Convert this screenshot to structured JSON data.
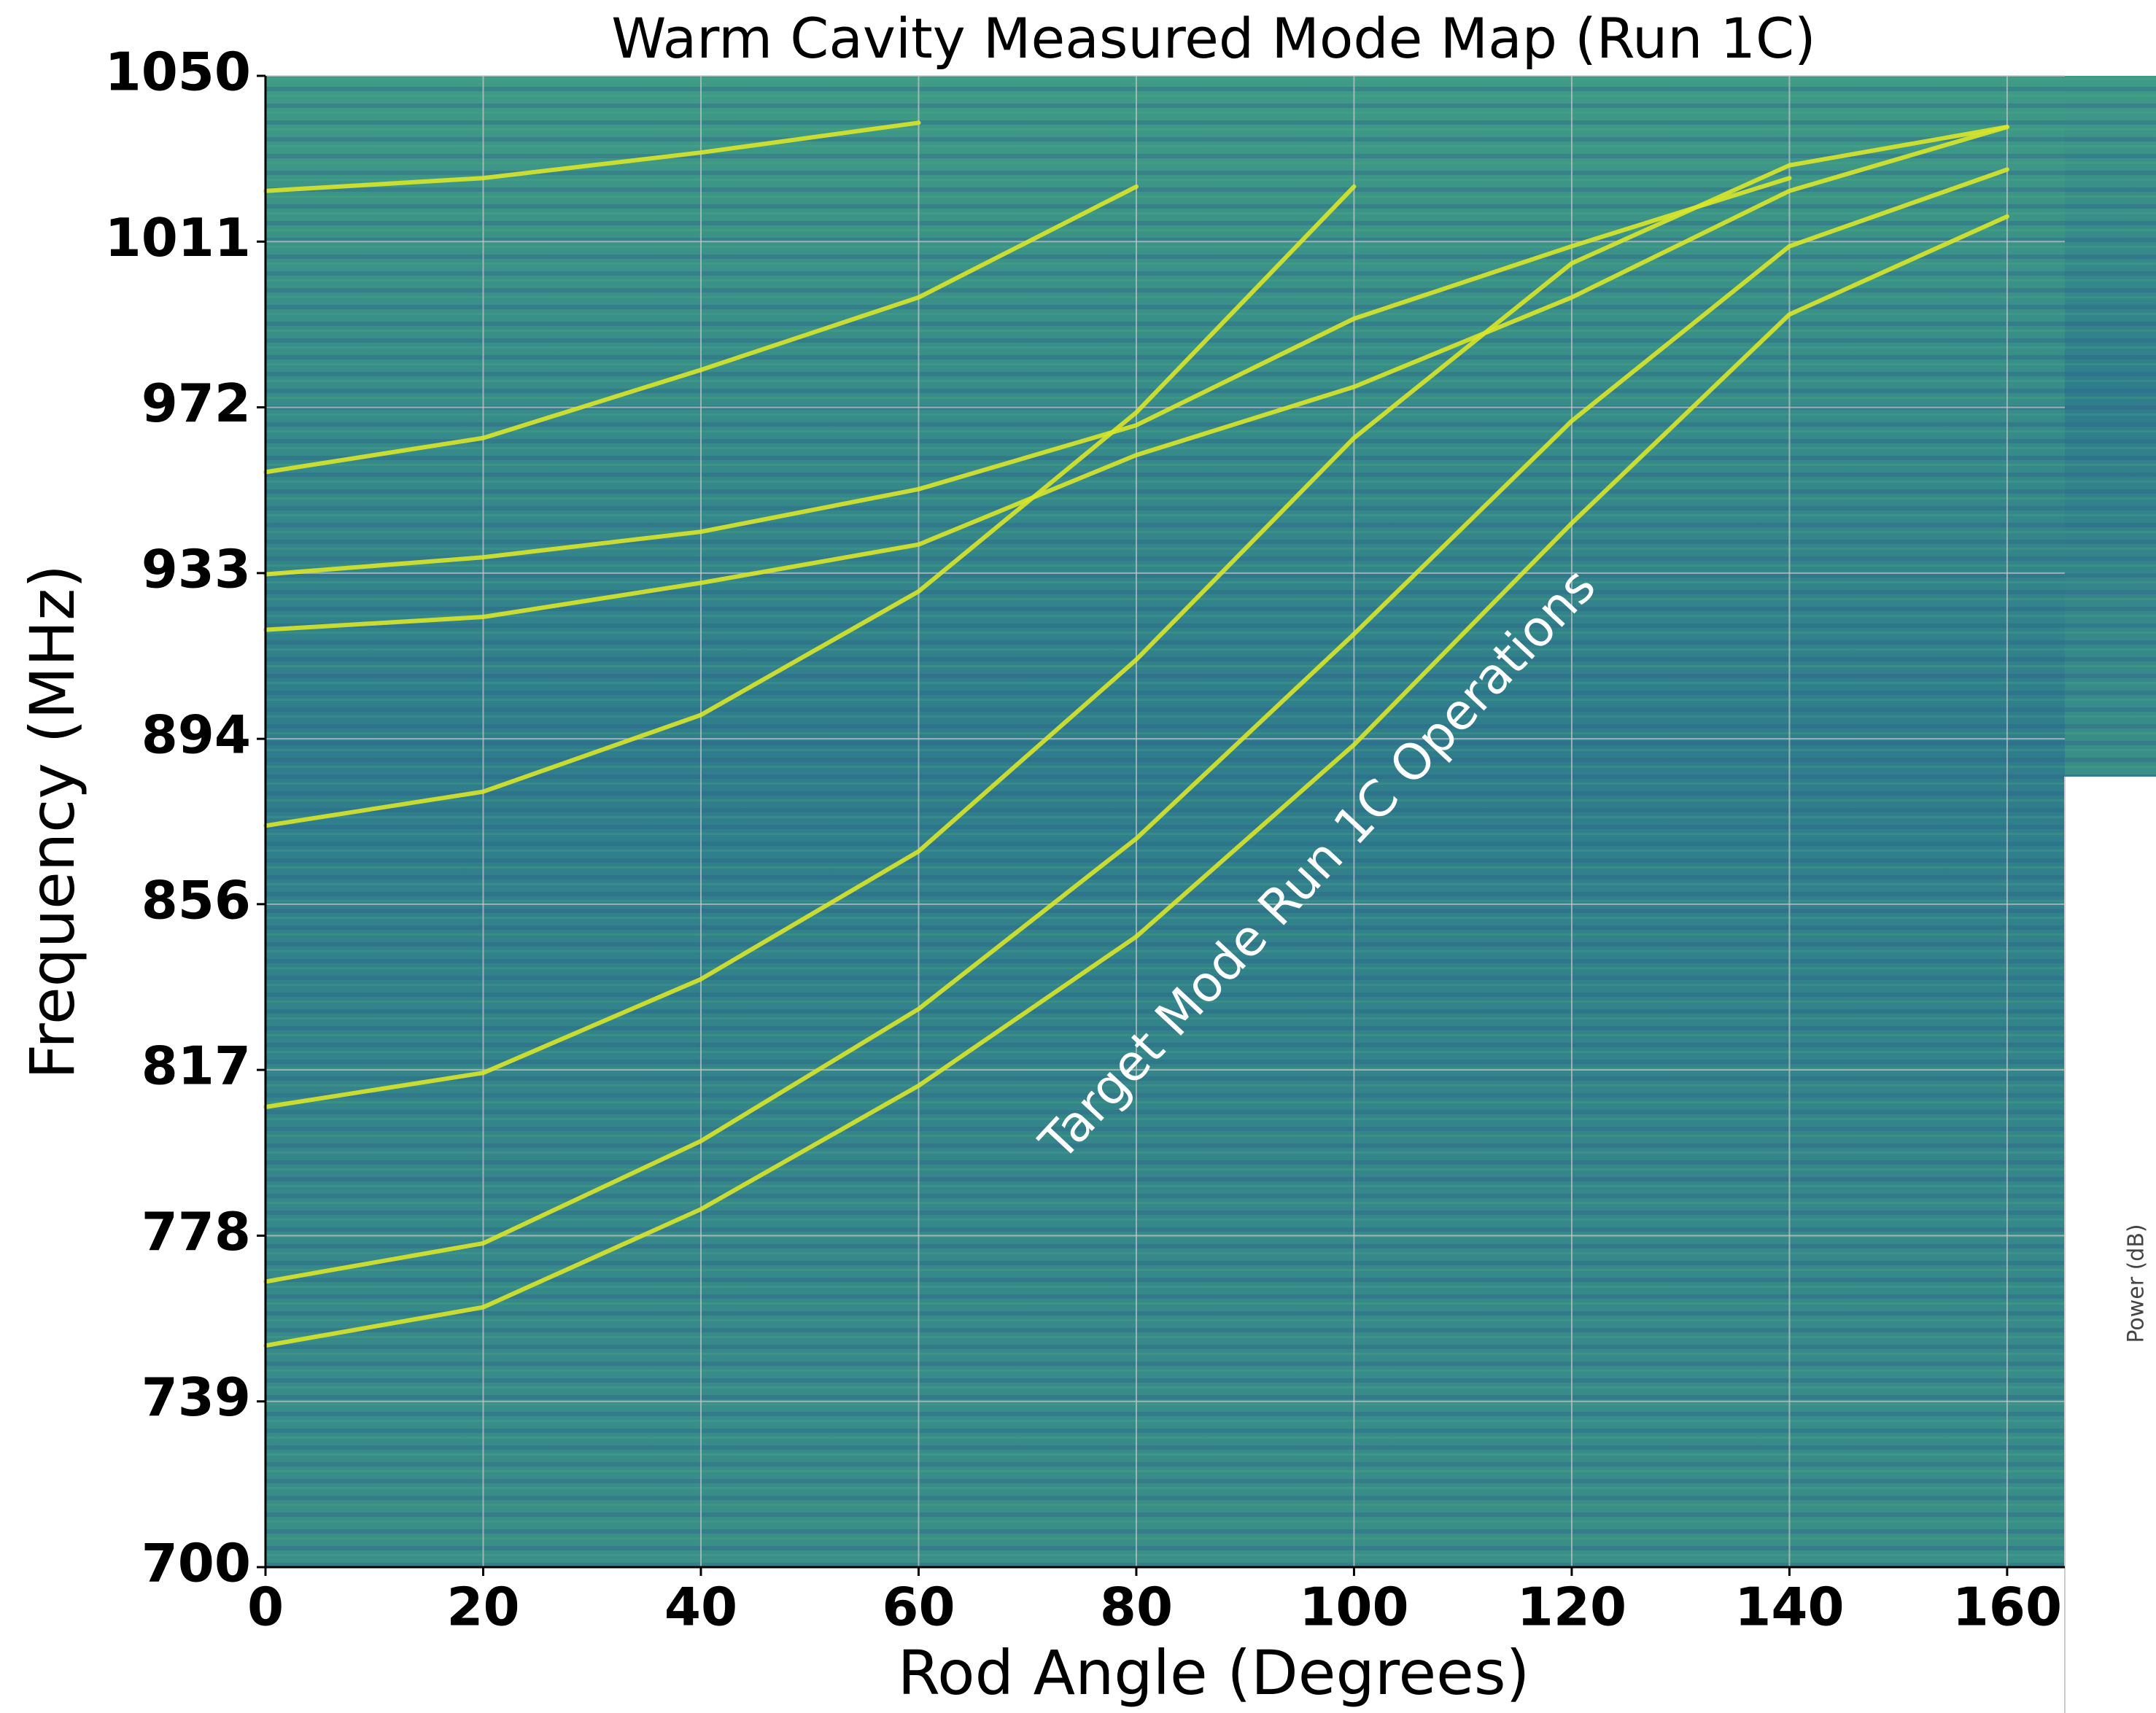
{
  "chart_data": {
    "type": "heatmap",
    "title": "Warm Cavity Measured Mode Map (Run 1C)",
    "x_label": "Rod Angle (Degrees)",
    "y_label": "Frequency (MHz)",
    "annotation": "Target Mode Run 1C Operations",
    "colorbar_label": "Power (dB)",
    "xlim": [
      0,
      165.3
    ],
    "ylim": [
      700,
      1050
    ],
    "xticks": [
      0,
      20,
      40,
      60,
      80,
      100,
      120,
      140,
      160
    ],
    "yticks": [
      700,
      {
        "value": 738.9,
        "label": "739"
      },
      {
        "value": 777.8,
        "label": "778"
      },
      {
        "value": 816.7,
        "label": "817"
      },
      {
        "value": 855.6,
        "label": "856"
      },
      {
        "value": 894.4,
        "label": "894"
      },
      {
        "value": 933.3,
        "label": "933"
      },
      {
        "value": 972.2,
        "label": "972"
      },
      {
        "value": 1011.1,
        "label": "1011"
      },
      1050
    ],
    "grid": true,
    "x": [
      0,
      20,
      40,
      60,
      80,
      100,
      120,
      140,
      160
    ],
    "series": [
      {
        "color": "#d9e52a",
        "values": [
          752,
          761,
          784,
          813,
          848,
          893,
          945,
          994,
          1017
        ]
      },
      {
        "color": "#d9e52a",
        "values": [
          767,
          776,
          800,
          831,
          871,
          919,
          969,
          1010,
          1028
        ]
      },
      {
        "color": "#d9e52a",
        "values": [
          808,
          816,
          838,
          868,
          913,
          965,
          1006,
          1029,
          1038
        ]
      },
      {
        "color": "#d9e52a",
        "values": [
          874,
          882,
          900,
          929,
          971,
          1024,
          null,
          null,
          null
        ]
      },
      {
        "color": "#d9e52a",
        "values": [
          920,
          923,
          931,
          940,
          961,
          977,
          998,
          1023,
          1038
        ]
      },
      {
        "color": "#d9e52a",
        "values": [
          933,
          937,
          943,
          953,
          968,
          993,
          1010,
          1026,
          null
        ]
      },
      {
        "color": "#d9e52a",
        "values": [
          957,
          965,
          981,
          998,
          1024,
          null,
          null,
          null,
          null
        ]
      },
      {
        "color": "#d9e52a",
        "values": [
          1023,
          1026,
          1032,
          1039,
          null,
          null,
          null,
          null,
          null
        ]
      }
    ]
  }
}
